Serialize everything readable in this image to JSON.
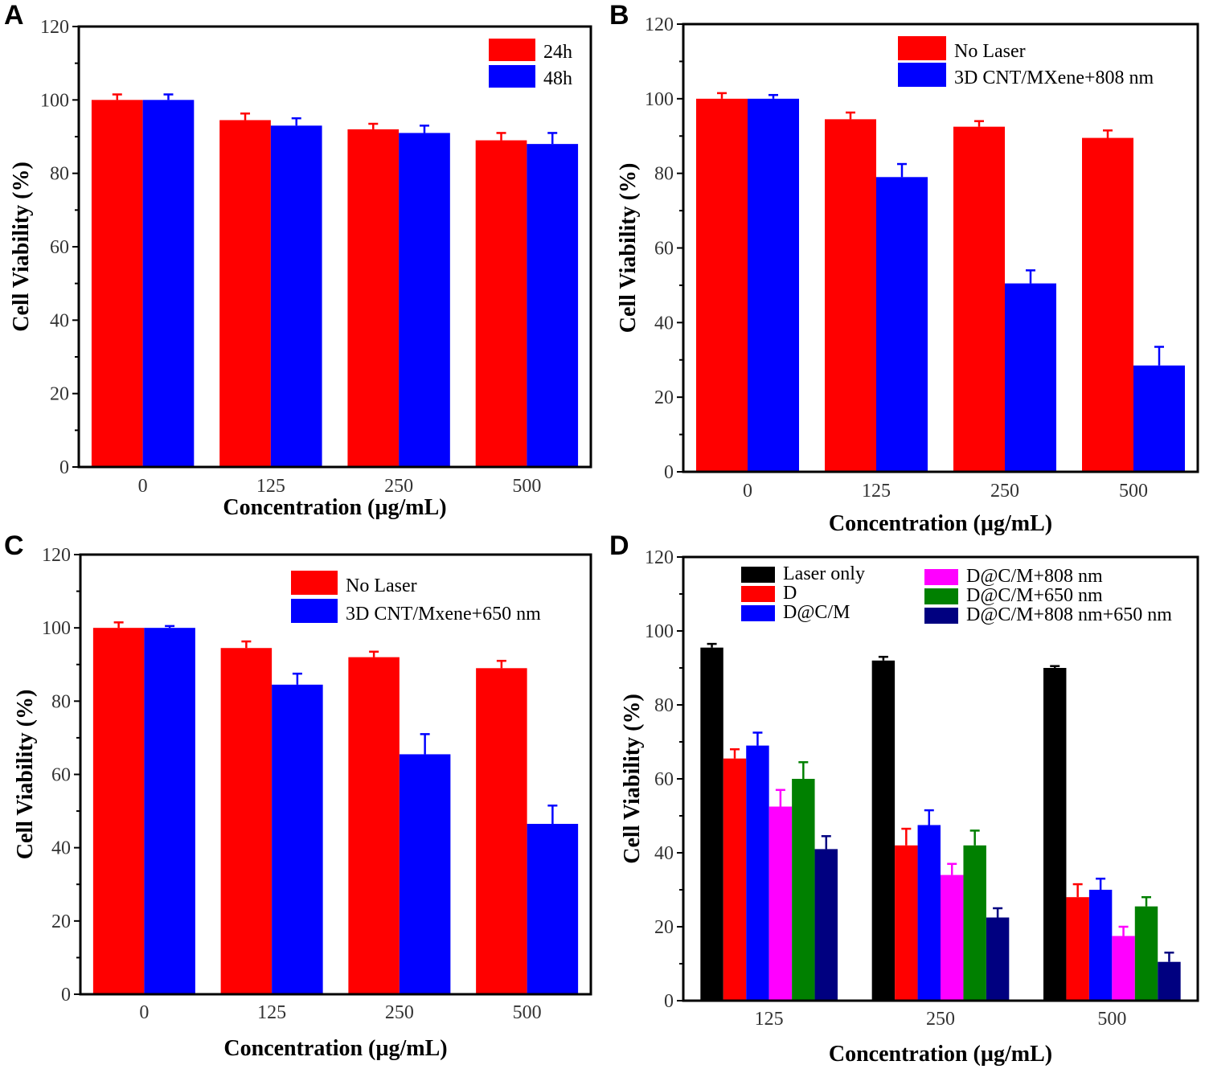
{
  "chart_data": [
    {
      "panel": "A",
      "type": "bar",
      "categories": [
        "0",
        "125",
        "250",
        "500"
      ],
      "xlabel": "Concentration (µg/mL)",
      "ylabel": "Cell Viability  (%)",
      "ylim": [
        0,
        120
      ],
      "yticks": [
        0,
        20,
        40,
        60,
        80,
        100,
        120
      ],
      "legend_position": "top-right",
      "series": [
        {
          "name": "24h",
          "color": "#ff0000",
          "values": [
            100,
            94.5,
            92,
            89
          ],
          "errors": [
            1.5,
            1.8,
            1.5,
            2
          ]
        },
        {
          "name": "48h",
          "color": "#0000ff",
          "values": [
            100,
            93,
            91,
            88
          ],
          "errors": [
            1.5,
            2,
            2,
            3
          ]
        }
      ]
    },
    {
      "panel": "B",
      "type": "bar",
      "categories": [
        "0",
        "125",
        "250",
        "500"
      ],
      "xlabel": "Concentration (µg/mL)",
      "ylabel": "Cell Viability  (%)",
      "ylim": [
        0,
        120
      ],
      "yticks": [
        0,
        20,
        40,
        60,
        80,
        100,
        120
      ],
      "legend_position": "top-right",
      "series": [
        {
          "name": "No Laser",
          "color": "#ff0000",
          "values": [
            100,
            94.5,
            92.5,
            89.5
          ],
          "errors": [
            1.5,
            1.8,
            1.5,
            2
          ]
        },
        {
          "name": "3D CNT/MXene+808 nm",
          "color": "#0000ff",
          "values": [
            100,
            79,
            50.5,
            28.5
          ],
          "errors": [
            1,
            3.5,
            3.5,
            5
          ]
        }
      ]
    },
    {
      "panel": "C",
      "type": "bar",
      "categories": [
        "0",
        "125",
        "250",
        "500"
      ],
      "xlabel": "Concentration (µg/mL)",
      "ylabel": "Cell Viability  (%)",
      "ylim": [
        0,
        120
      ],
      "yticks": [
        0,
        20,
        40,
        60,
        80,
        100,
        120
      ],
      "legend_position": "top-right",
      "series": [
        {
          "name": "No Laser",
          "color": "#ff0000",
          "values": [
            100,
            94.5,
            92,
            89
          ],
          "errors": [
            1.5,
            1.8,
            1.5,
            2
          ]
        },
        {
          "name": "3D CNT/Mxene+650 nm",
          "color": "#0000ff",
          "values": [
            100,
            84.5,
            65.5,
            46.5
          ],
          "errors": [
            0.5,
            3,
            5.5,
            5
          ]
        }
      ]
    },
    {
      "panel": "D",
      "type": "bar",
      "categories": [
        "125",
        "250",
        "500"
      ],
      "xlabel": "Concentration (µg/mL)",
      "ylabel": "Cell Viability  (%)",
      "ylim": [
        0,
        120
      ],
      "yticks": [
        0,
        20,
        40,
        60,
        80,
        100,
        120
      ],
      "legend_position": "top",
      "series": [
        {
          "name": "Laser only",
          "color": "#000000",
          "values": [
            95.5,
            92,
            90
          ],
          "errors": [
            1,
            1,
            0.5
          ]
        },
        {
          "name": "D",
          "color": "#ff0000",
          "values": [
            65.5,
            42,
            28
          ],
          "errors": [
            2.5,
            4.5,
            3.5
          ]
        },
        {
          "name": "D@C/M",
          "color": "#0000ff",
          "values": [
            69,
            47.5,
            30
          ],
          "errors": [
            3.5,
            4,
            3
          ]
        },
        {
          "name": "D@C/M+808 nm",
          "color": "#ff00ff",
          "values": [
            52.5,
            34,
            17.5
          ],
          "errors": [
            4.5,
            3,
            2.5
          ]
        },
        {
          "name": "D@C/M+650 nm",
          "color": "#008000",
          "values": [
            60,
            42,
            25.5
          ],
          "errors": [
            4.5,
            4,
            2.5
          ]
        },
        {
          "name": "D@C/M+808 nm+650 nm",
          "color": "#000080",
          "values": [
            41,
            22.5,
            10.5
          ],
          "errors": [
            3.5,
            2.5,
            2.5
          ]
        }
      ]
    }
  ]
}
